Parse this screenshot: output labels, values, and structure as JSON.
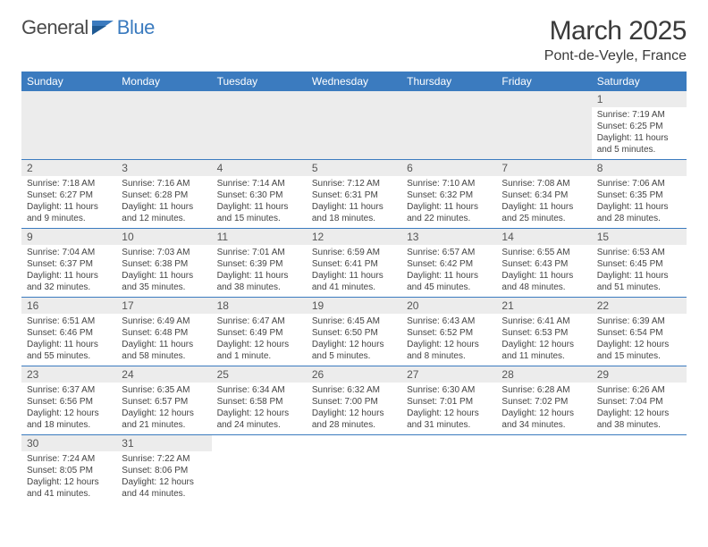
{
  "logo": {
    "textA": "General",
    "textB": "Blue"
  },
  "title": "March 2025",
  "location": "Pont-de-Veyle, France",
  "colors": {
    "header_bg": "#3b7bbf",
    "header_text": "#ffffff",
    "daynum_bg": "#ececec",
    "border": "#3b7bbf",
    "text": "#333333"
  },
  "weekdays": [
    "Sunday",
    "Monday",
    "Tuesday",
    "Wednesday",
    "Thursday",
    "Friday",
    "Saturday"
  ],
  "weeks": [
    [
      null,
      null,
      null,
      null,
      null,
      null,
      {
        "n": "1",
        "sr": "7:19 AM",
        "ss": "6:25 PM",
        "dl": "11 hours and 5 minutes."
      }
    ],
    [
      {
        "n": "2",
        "sr": "7:18 AM",
        "ss": "6:27 PM",
        "dl": "11 hours and 9 minutes."
      },
      {
        "n": "3",
        "sr": "7:16 AM",
        "ss": "6:28 PM",
        "dl": "11 hours and 12 minutes."
      },
      {
        "n": "4",
        "sr": "7:14 AM",
        "ss": "6:30 PM",
        "dl": "11 hours and 15 minutes."
      },
      {
        "n": "5",
        "sr": "7:12 AM",
        "ss": "6:31 PM",
        "dl": "11 hours and 18 minutes."
      },
      {
        "n": "6",
        "sr": "7:10 AM",
        "ss": "6:32 PM",
        "dl": "11 hours and 22 minutes."
      },
      {
        "n": "7",
        "sr": "7:08 AM",
        "ss": "6:34 PM",
        "dl": "11 hours and 25 minutes."
      },
      {
        "n": "8",
        "sr": "7:06 AM",
        "ss": "6:35 PM",
        "dl": "11 hours and 28 minutes."
      }
    ],
    [
      {
        "n": "9",
        "sr": "7:04 AM",
        "ss": "6:37 PM",
        "dl": "11 hours and 32 minutes."
      },
      {
        "n": "10",
        "sr": "7:03 AM",
        "ss": "6:38 PM",
        "dl": "11 hours and 35 minutes."
      },
      {
        "n": "11",
        "sr": "7:01 AM",
        "ss": "6:39 PM",
        "dl": "11 hours and 38 minutes."
      },
      {
        "n": "12",
        "sr": "6:59 AM",
        "ss": "6:41 PM",
        "dl": "11 hours and 41 minutes."
      },
      {
        "n": "13",
        "sr": "6:57 AM",
        "ss": "6:42 PM",
        "dl": "11 hours and 45 minutes."
      },
      {
        "n": "14",
        "sr": "6:55 AM",
        "ss": "6:43 PM",
        "dl": "11 hours and 48 minutes."
      },
      {
        "n": "15",
        "sr": "6:53 AM",
        "ss": "6:45 PM",
        "dl": "11 hours and 51 minutes."
      }
    ],
    [
      {
        "n": "16",
        "sr": "6:51 AM",
        "ss": "6:46 PM",
        "dl": "11 hours and 55 minutes."
      },
      {
        "n": "17",
        "sr": "6:49 AM",
        "ss": "6:48 PM",
        "dl": "11 hours and 58 minutes."
      },
      {
        "n": "18",
        "sr": "6:47 AM",
        "ss": "6:49 PM",
        "dl": "12 hours and 1 minute."
      },
      {
        "n": "19",
        "sr": "6:45 AM",
        "ss": "6:50 PM",
        "dl": "12 hours and 5 minutes."
      },
      {
        "n": "20",
        "sr": "6:43 AM",
        "ss": "6:52 PM",
        "dl": "12 hours and 8 minutes."
      },
      {
        "n": "21",
        "sr": "6:41 AM",
        "ss": "6:53 PM",
        "dl": "12 hours and 11 minutes."
      },
      {
        "n": "22",
        "sr": "6:39 AM",
        "ss": "6:54 PM",
        "dl": "12 hours and 15 minutes."
      }
    ],
    [
      {
        "n": "23",
        "sr": "6:37 AM",
        "ss": "6:56 PM",
        "dl": "12 hours and 18 minutes."
      },
      {
        "n": "24",
        "sr": "6:35 AM",
        "ss": "6:57 PM",
        "dl": "12 hours and 21 minutes."
      },
      {
        "n": "25",
        "sr": "6:34 AM",
        "ss": "6:58 PM",
        "dl": "12 hours and 24 minutes."
      },
      {
        "n": "26",
        "sr": "6:32 AM",
        "ss": "7:00 PM",
        "dl": "12 hours and 28 minutes."
      },
      {
        "n": "27",
        "sr": "6:30 AM",
        "ss": "7:01 PM",
        "dl": "12 hours and 31 minutes."
      },
      {
        "n": "28",
        "sr": "6:28 AM",
        "ss": "7:02 PM",
        "dl": "12 hours and 34 minutes."
      },
      {
        "n": "29",
        "sr": "6:26 AM",
        "ss": "7:04 PM",
        "dl": "12 hours and 38 minutes."
      }
    ],
    [
      {
        "n": "30",
        "sr": "7:24 AM",
        "ss": "8:05 PM",
        "dl": "12 hours and 41 minutes."
      },
      {
        "n": "31",
        "sr": "7:22 AM",
        "ss": "8:06 PM",
        "dl": "12 hours and 44 minutes."
      },
      null,
      null,
      null,
      null,
      null
    ]
  ],
  "labels": {
    "sunrise": "Sunrise:",
    "sunset": "Sunset:",
    "daylight": "Daylight:"
  }
}
